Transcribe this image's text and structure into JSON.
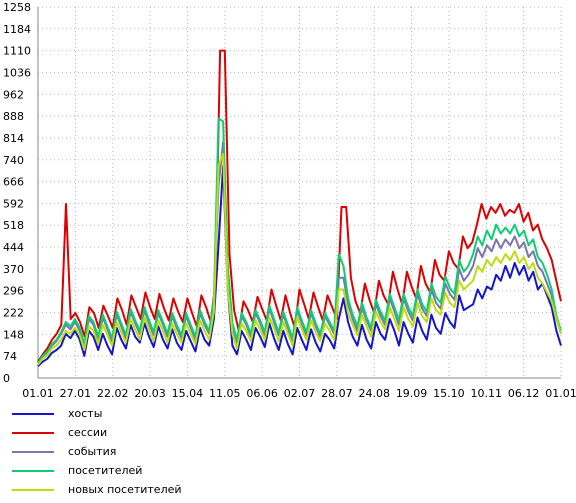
{
  "chart_data": {
    "type": "line",
    "title": "",
    "xlabel": "",
    "ylabel": "",
    "ylim": [
      0,
      1258
    ],
    "y_ticks": [
      0,
      74,
      148,
      222,
      296,
      370,
      444,
      518,
      592,
      666,
      740,
      814,
      888,
      962,
      1036,
      1110,
      1184,
      1258
    ],
    "x_tick_labels": [
      "01.01",
      "27.01",
      "22.02",
      "20.03",
      "15.04",
      "11.05",
      "06.06",
      "02.07",
      "28.07",
      "24.08",
      "19.09",
      "15.10",
      "10.11",
      "06.12",
      "01.01"
    ],
    "grid": true,
    "legend_position": "bottom",
    "series": [
      {
        "name": "хосты",
        "color": "#1515cc",
        "values": [
          40,
          55,
          65,
          85,
          95,
          110,
          150,
          135,
          160,
          130,
          75,
          160,
          140,
          95,
          150,
          110,
          80,
          170,
          130,
          100,
          180,
          140,
          120,
          185,
          140,
          105,
          175,
          130,
          100,
          165,
          120,
          95,
          160,
          125,
          90,
          170,
          130,
          110,
          200,
          450,
          720,
          300,
          110,
          80,
          160,
          130,
          95,
          170,
          140,
          105,
          185,
          135,
          95,
          160,
          115,
          80,
          170,
          130,
          95,
          165,
          120,
          90,
          150,
          130,
          100,
          200,
          270,
          190,
          140,
          110,
          180,
          130,
          100,
          190,
          150,
          130,
          200,
          160,
          110,
          190,
          150,
          120,
          205,
          160,
          130,
          215,
          170,
          150,
          220,
          190,
          170,
          280,
          230,
          240,
          250,
          300,
          270,
          310,
          300,
          350,
          330,
          380,
          340,
          390,
          350,
          380,
          330,
          360,
          300,
          320,
          280,
          240,
          160,
          110
        ]
      },
      {
        "name": "сессии",
        "color": "#dd0000",
        "values": [
          55,
          80,
          100,
          130,
          150,
          180,
          590,
          200,
          220,
          190,
          140,
          240,
          220,
          170,
          245,
          210,
          170,
          270,
          230,
          180,
          280,
          240,
          200,
          290,
          240,
          200,
          285,
          235,
          195,
          270,
          225,
          190,
          270,
          220,
          175,
          280,
          240,
          190,
          320,
          1110,
          1110,
          420,
          230,
          160,
          260,
          230,
          190,
          275,
          235,
          195,
          300,
          245,
          195,
          280,
          220,
          170,
          300,
          250,
          200,
          290,
          240,
          195,
          280,
          240,
          200,
          580,
          580,
          340,
          260,
          220,
          320,
          265,
          220,
          330,
          280,
          250,
          360,
          300,
          250,
          360,
          310,
          270,
          380,
          320,
          290,
          400,
          350,
          330,
          430,
          390,
          370,
          480,
          440,
          460,
          520,
          590,
          540,
          580,
          560,
          590,
          550,
          570,
          560,
          590,
          530,
          560,
          500,
          520,
          470,
          440,
          400,
          330,
          260
        ]
      },
      {
        "name": "события",
        "color": "#7777aa",
        "values": [
          50,
          72,
          88,
          110,
          125,
          150,
          180,
          165,
          190,
          160,
          110,
          200,
          180,
          130,
          205,
          165,
          125,
          215,
          175,
          135,
          225,
          185,
          150,
          230,
          185,
          145,
          220,
          180,
          140,
          210,
          170,
          135,
          210,
          170,
          130,
          220,
          180,
          150,
          250,
          650,
          800,
          360,
          170,
          120,
          210,
          180,
          140,
          220,
          185,
          145,
          235,
          190,
          145,
          215,
          170,
          125,
          230,
          185,
          145,
          220,
          175,
          140,
          210,
          180,
          150,
          340,
          340,
          250,
          200,
          160,
          240,
          195,
          160,
          250,
          210,
          180,
          270,
          225,
          180,
          270,
          225,
          195,
          285,
          235,
          210,
          300,
          255,
          235,
          320,
          285,
          265,
          370,
          330,
          350,
          380,
          440,
          410,
          450,
          430,
          470,
          440,
          470,
          450,
          480,
          440,
          460,
          410,
          430,
          380,
          360,
          320,
          280,
          200,
          150
        ]
      },
      {
        "name": "посетителей",
        "color": "#11cc77",
        "values": [
          50,
          75,
          90,
          115,
          130,
          155,
          190,
          175,
          200,
          170,
          115,
          210,
          190,
          140,
          215,
          175,
          135,
          225,
          185,
          145,
          235,
          195,
          160,
          240,
          195,
          155,
          230,
          190,
          150,
          220,
          180,
          145,
          220,
          180,
          140,
          230,
          190,
          160,
          265,
          880,
          870,
          380,
          185,
          130,
          220,
          190,
          150,
          230,
          195,
          155,
          245,
          200,
          155,
          225,
          180,
          135,
          240,
          195,
          155,
          230,
          185,
          150,
          220,
          190,
          160,
          420,
          380,
          270,
          215,
          175,
          255,
          205,
          170,
          265,
          225,
          195,
          285,
          240,
          195,
          285,
          240,
          210,
          300,
          250,
          225,
          320,
          275,
          255,
          345,
          305,
          285,
          400,
          360,
          380,
          420,
          480,
          450,
          500,
          470,
          520,
          490,
          510,
          490,
          520,
          480,
          500,
          450,
          470,
          410,
          390,
          350,
          300,
          210,
          160
        ]
      },
      {
        "name": "новых посетителей",
        "color": "#bbdd11",
        "values": [
          45,
          65,
          78,
          100,
          110,
          130,
          160,
          150,
          170,
          145,
          95,
          175,
          160,
          115,
          180,
          145,
          110,
          190,
          155,
          120,
          200,
          165,
          130,
          205,
          165,
          125,
          195,
          160,
          120,
          185,
          150,
          120,
          185,
          150,
          115,
          195,
          160,
          130,
          225,
          720,
          760,
          300,
          150,
          100,
          185,
          160,
          125,
          195,
          165,
          130,
          205,
          170,
          125,
          190,
          150,
          110,
          205,
          165,
          130,
          195,
          155,
          125,
          185,
          160,
          130,
          300,
          300,
          220,
          180,
          145,
          215,
          175,
          140,
          225,
          190,
          165,
          240,
          200,
          160,
          240,
          200,
          175,
          255,
          210,
          190,
          270,
          230,
          215,
          290,
          255,
          240,
          330,
          300,
          315,
          330,
          380,
          360,
          400,
          380,
          410,
          390,
          420,
          400,
          430,
          390,
          410,
          370,
          390,
          340,
          320,
          290,
          260,
          200,
          150
        ]
      }
    ]
  }
}
